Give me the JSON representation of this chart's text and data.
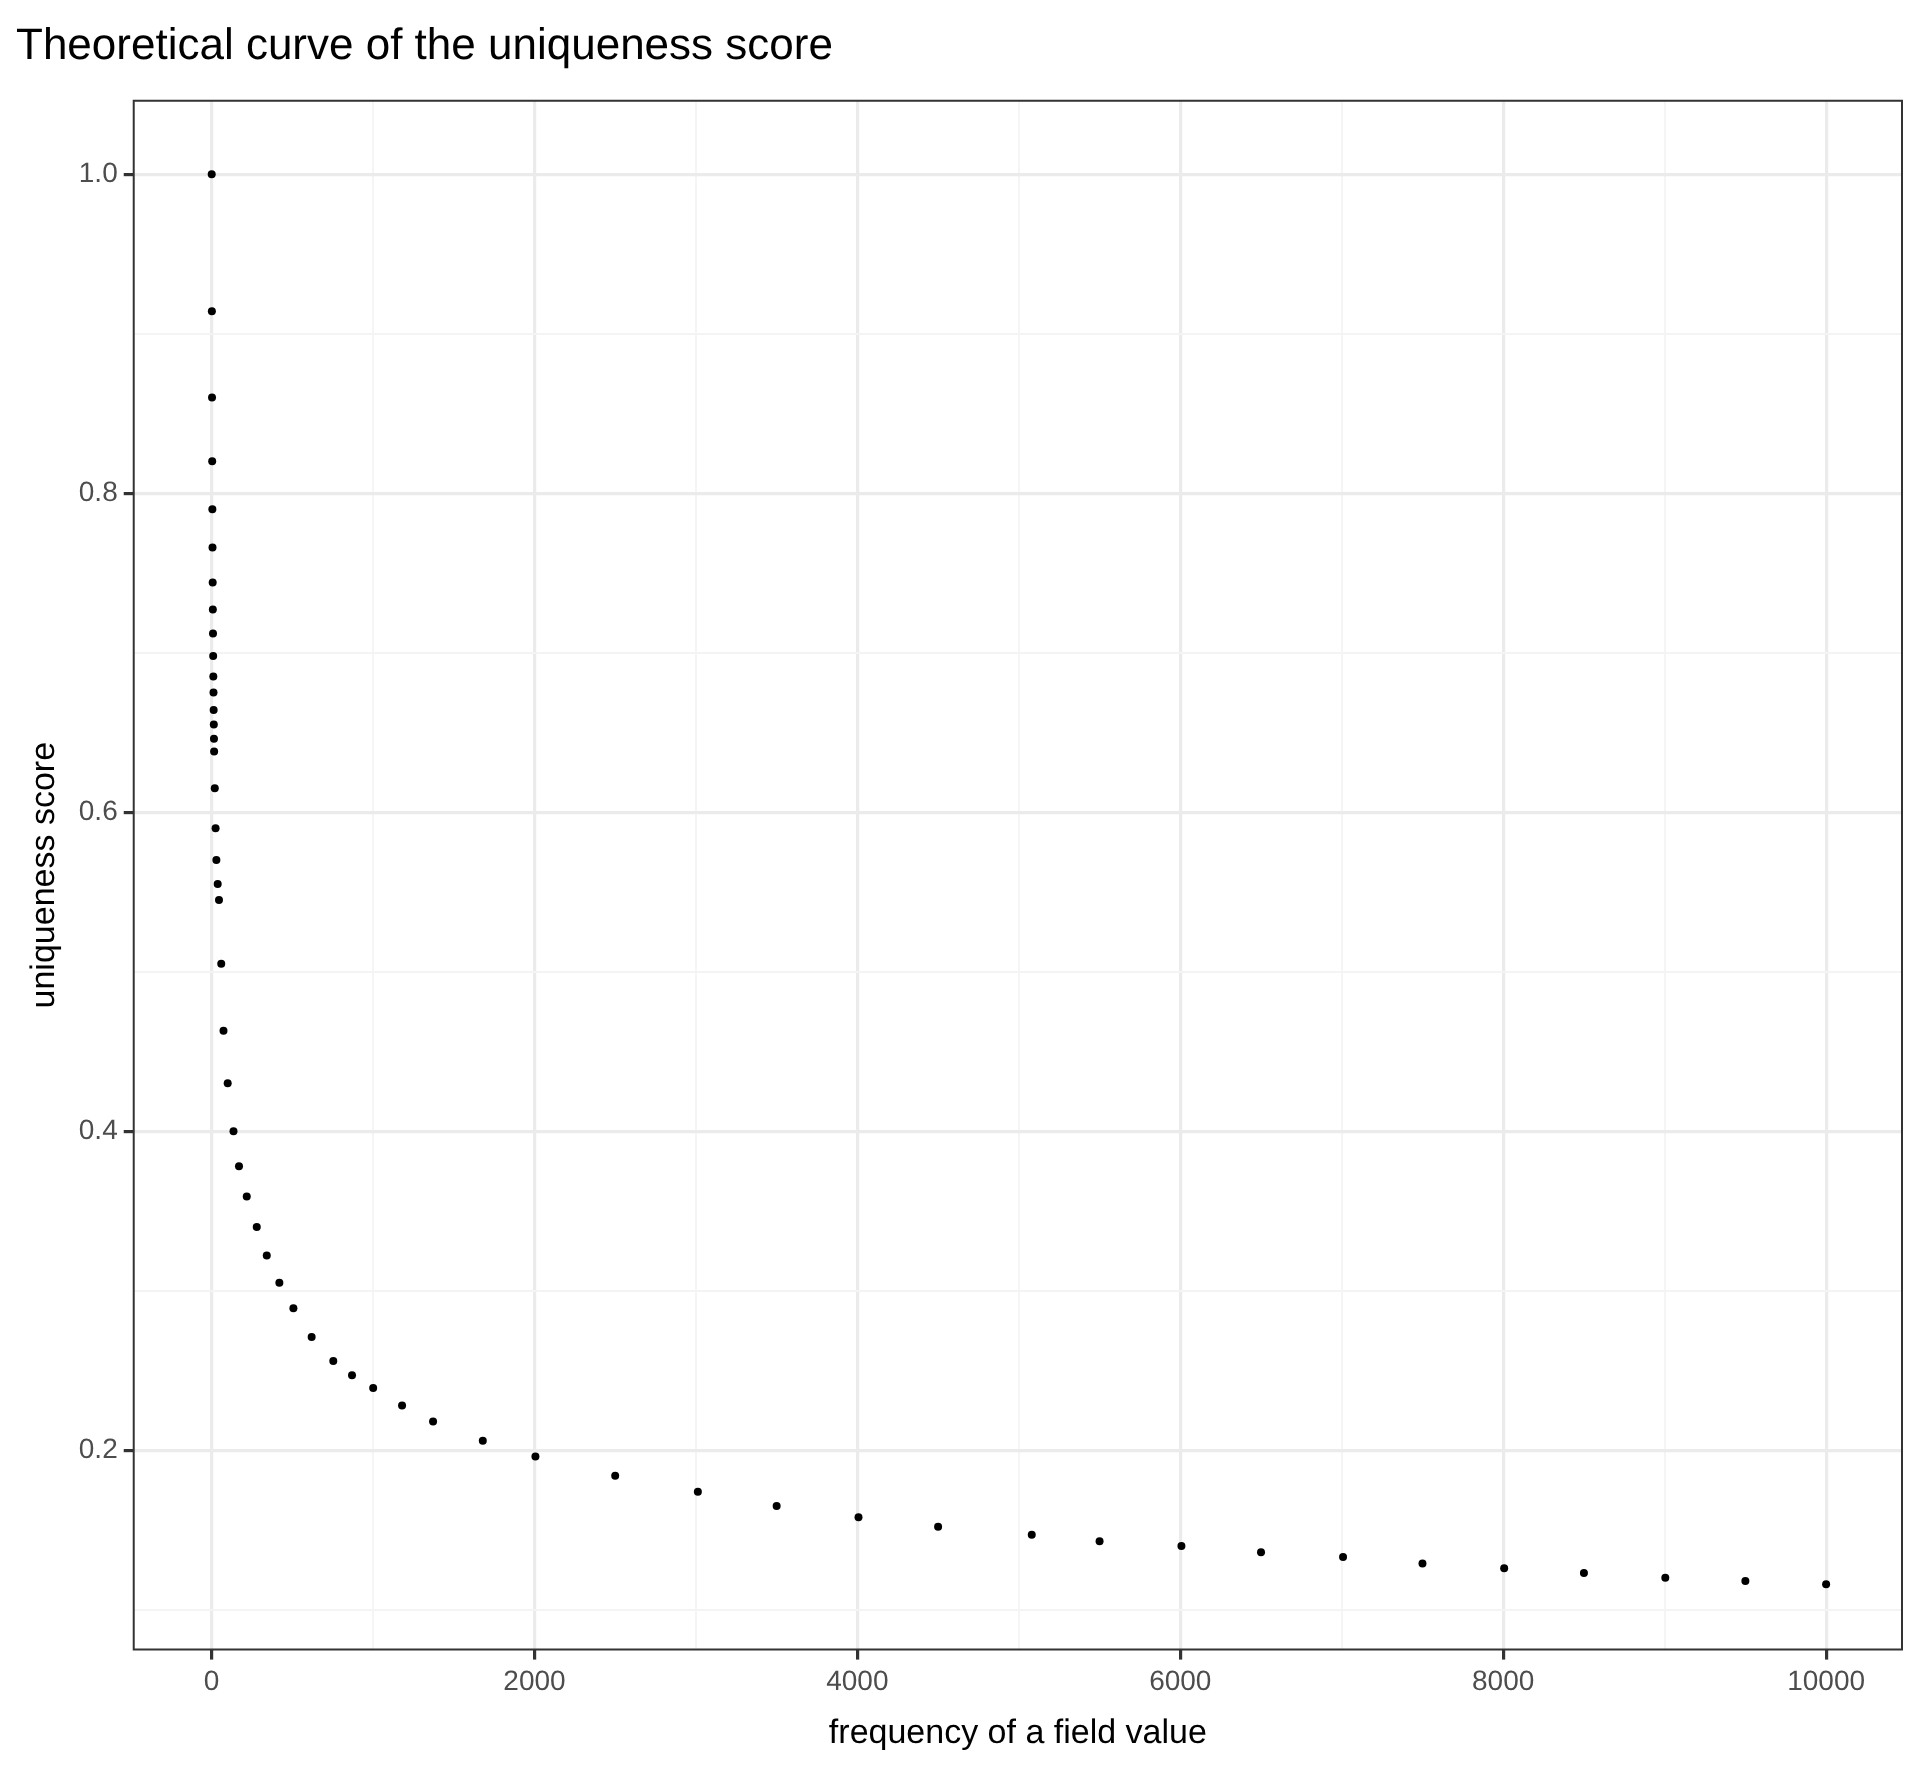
{
  "chart_data": {
    "type": "scatter",
    "title": "Theoretical curve of the uniqueness score",
    "xlabel": "frequency of a field value",
    "ylabel": "uniqueness score",
    "series": [
      {
        "color": "#000000",
        "x": [
          1,
          2,
          3,
          4,
          5,
          6,
          7,
          8,
          9,
          10,
          11,
          12,
          13,
          14,
          15,
          16,
          20,
          25,
          30,
          38,
          46,
          60,
          74,
          100,
          136,
          170,
          218,
          280,
          342,
          420,
          507,
          620,
          754,
          870,
          1001,
          1180,
          1372,
          1680,
          2006,
          2500,
          3012,
          3500,
          4007,
          4500,
          5080,
          5500,
          6007,
          6500,
          7008,
          7500,
          8006,
          8500,
          9004,
          9500,
          10000
        ],
        "values": [
          1.0,
          0.914,
          0.86,
          0.82,
          0.79,
          0.766,
          0.744,
          0.727,
          0.712,
          0.698,
          0.685,
          0.675,
          0.664,
          0.655,
          0.646,
          0.638,
          0.615,
          0.59,
          0.57,
          0.555,
          0.545,
          0.505,
          0.463,
          0.43,
          0.4,
          0.378,
          0.359,
          0.34,
          0.322,
          0.305,
          0.289,
          0.271,
          0.256,
          0.247,
          0.239,
          0.228,
          0.218,
          0.206,
          0.196,
          0.184,
          0.174,
          0.165,
          0.158,
          0.152,
          0.147,
          0.143,
          0.14,
          0.136,
          0.133,
          0.129,
          0.126,
          0.123,
          0.12,
          0.118,
          0.116
        ]
      }
    ],
    "xlim": [
      -482,
      10470
    ],
    "ylim": [
      0.075,
      1.046
    ],
    "xticks": [
      0,
      {
        "value": 1000,
        "label": null
      },
      2000,
      {
        "value": 3000,
        "label": null
      },
      4000,
      {
        "value": 5000,
        "label": null
      },
      6000,
      {
        "value": 7000,
        "label": null
      },
      8000,
      {
        "value": 9000,
        "label": null
      },
      10000
    ],
    "yticks": [
      {
        "value": 0.1,
        "label": null
      },
      0.2,
      {
        "value": 0.3,
        "label": null
      },
      0.4,
      {
        "value": 0.5,
        "label": null
      },
      0.6,
      {
        "value": 0.7,
        "label": null
      },
      0.8,
      {
        "value": 0.9,
        "label": null
      },
      {
        "value": 1,
        "label": "1.0"
      }
    ],
    "grid": true,
    "marker": "circle",
    "legend": false
  }
}
